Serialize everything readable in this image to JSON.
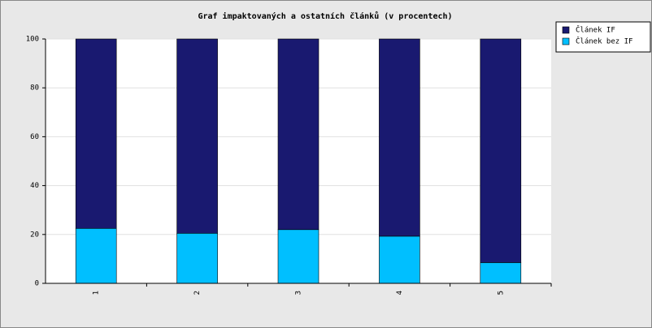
{
  "chart_data": {
    "type": "bar",
    "stacked": true,
    "title": "Graf impaktovaných a ostatních článků (v procentech)",
    "categories": [
      "1",
      "2",
      "3",
      "4",
      "5"
    ],
    "series": [
      {
        "name": "Článek IF",
        "color": "#191970",
        "values": [
          77.5,
          79.5,
          78,
          80.7,
          91.5
        ]
      },
      {
        "name": "Článek bez IF",
        "color": "#00bfff",
        "values": [
          22.5,
          20.5,
          22,
          19.3,
          8.5
        ]
      }
    ],
    "ylim": [
      0,
      100
    ],
    "yticks": [
      0,
      20,
      40,
      60,
      80,
      100
    ],
    "grid": true,
    "legend": "top-right"
  }
}
